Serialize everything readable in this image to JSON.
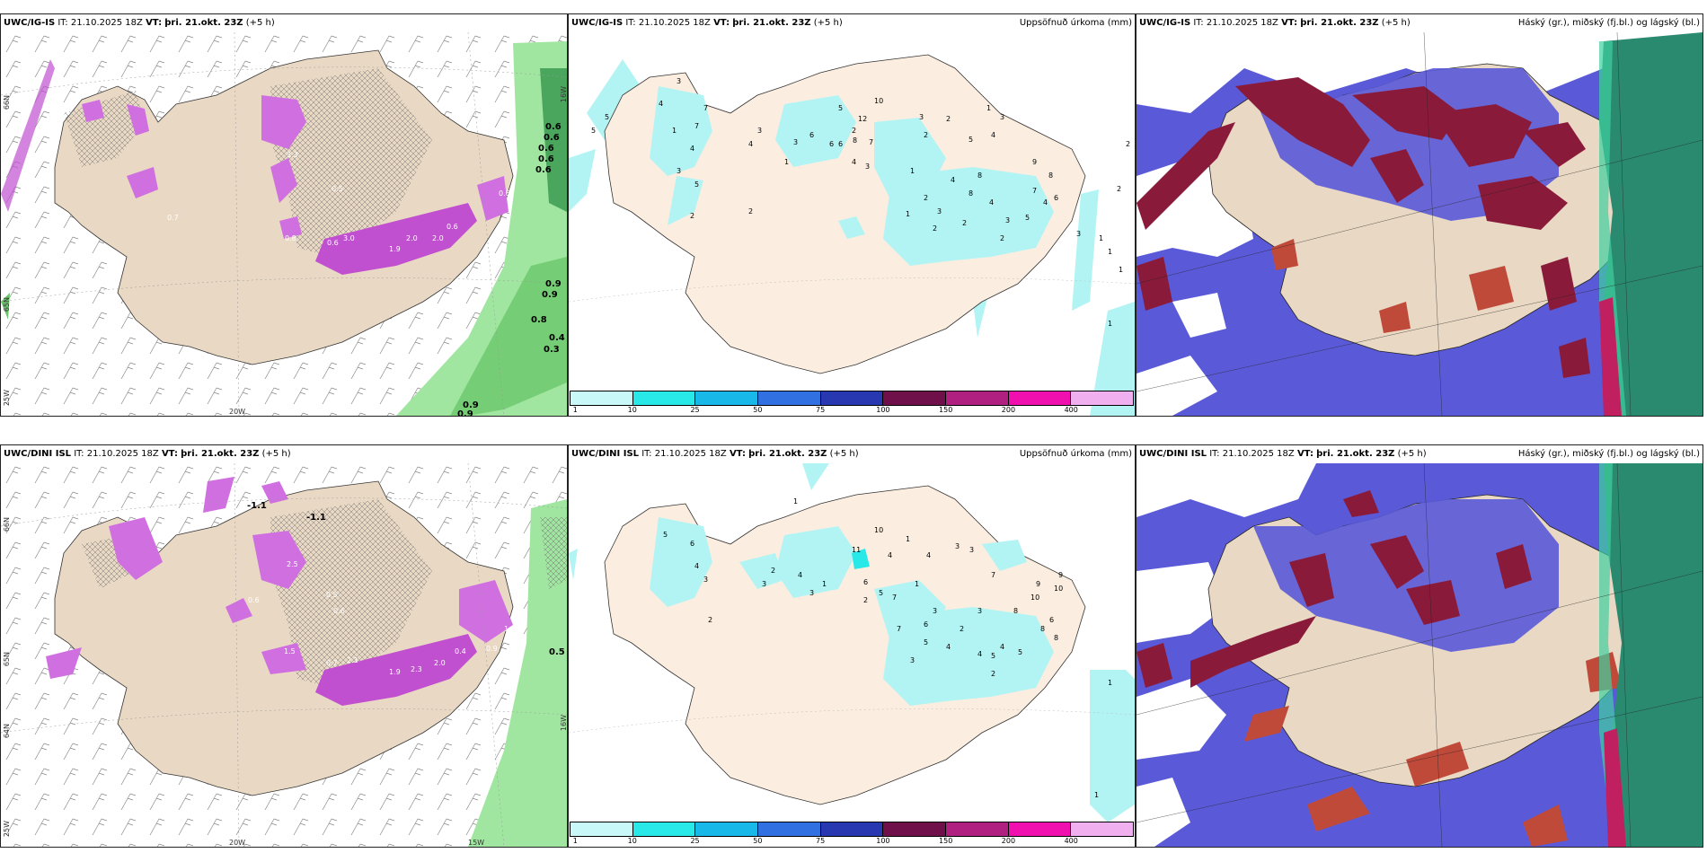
{
  "panels": {
    "r1c1": {
      "model": "UWC/IG-IS",
      "it_label": "IT:",
      "it_value": "21.10.2025 18Z",
      "vt_label": "VT:",
      "vt_value": "þri. 21.okt. 23Z",
      "lead": "(+5 h)",
      "right_title": "",
      "lon_labels": [
        "20W"
      ],
      "lat_labels": [
        "66N",
        "65N",
        "25W",
        "16W"
      ],
      "numbers": [
        "0.6",
        "0.6",
        "0.6",
        "0.6",
        "0.6",
        "0.9",
        "0.9",
        "0.8",
        "0.4",
        "0.3",
        "0.9",
        "0.9",
        "2.0",
        "2.0",
        "3.0",
        "0.6",
        "0.6",
        "0.5",
        "1.9",
        "3.3",
        "0.8",
        "0.7",
        "0.6"
      ]
    },
    "r1c2": {
      "model": "UWC/IG-IS",
      "it_label": "IT:",
      "it_value": "21.10.2025 18Z",
      "vt_label": "VT:",
      "vt_value": "þri. 21.okt. 23Z",
      "lead": "(+5 h)",
      "right_title": "Uppsöfnuð úrkoma (mm)",
      "numbers": [
        "5",
        "5",
        "4",
        "3",
        "7",
        "7",
        "1",
        "4",
        "3",
        "5",
        "2",
        "3",
        "4",
        "6",
        "2",
        "3",
        "1",
        "6",
        "10",
        "2",
        "4",
        "5",
        "6",
        "12",
        "8",
        "7",
        "3",
        "1",
        "2",
        "3",
        "2",
        "5",
        "1",
        "3",
        "4",
        "8",
        "3",
        "2",
        "4",
        "1",
        "2",
        "9",
        "8",
        "7",
        "6",
        "5",
        "4",
        "3",
        "2",
        "1",
        "1",
        "1",
        "1",
        "2",
        "2",
        "4",
        "8",
        "2",
        "3"
      ]
    },
    "r1c3": {
      "model": "UWC/IG-IS",
      "it_label": "IT:",
      "it_value": "21.10.2025 18Z",
      "vt_label": "VT:",
      "vt_value": "þri. 21.okt. 23Z",
      "lead": "(+5 h)",
      "right_title": "Háský (gr.), miðský (fj.bl.) og lágský (bl.)"
    },
    "r2c1": {
      "model": "UWC/DINI ISL",
      "it_label": "IT:",
      "it_value": "21.10.2025 18Z",
      "vt_label": "VT:",
      "vt_value": "þri. 21.okt. 23Z",
      "lead": "(+5 h)",
      "right_title": "",
      "lon_labels": [
        "20W",
        "15W"
      ],
      "lat_labels": [
        "66N",
        "65N",
        "64N",
        "25W",
        "16W"
      ],
      "numbers": [
        "-1.1",
        "-1.1",
        "0.5",
        "1.6",
        "2.1",
        "1.9",
        "2.3",
        "2.0",
        "0.7",
        "0.6",
        "0.5",
        "2.5",
        "1.5",
        "0.6",
        "0.4",
        "0.9"
      ]
    },
    "r2c2": {
      "model": "UWC/DINI ISL",
      "it_label": "IT:",
      "it_value": "21.10.2025 18Z",
      "vt_label": "VT:",
      "vt_value": "þri. 21.okt. 23Z",
      "lead": "(+5 h)",
      "right_title": "Uppsöfnuð úrkoma (mm)",
      "numbers": [
        "1",
        "5",
        "6",
        "4",
        "3",
        "3",
        "2",
        "4",
        "3",
        "1",
        "2",
        "10",
        "11",
        "4",
        "1",
        "4",
        "3",
        "3",
        "2",
        "6",
        "5",
        "7",
        "1",
        "3",
        "5",
        "4",
        "2",
        "3",
        "7",
        "8",
        "9",
        "10",
        "6",
        "4",
        "5",
        "4",
        "3",
        "2",
        "1",
        "1",
        "8",
        "7",
        "6",
        "5",
        "9",
        "10",
        "8"
      ]
    },
    "r2c3": {
      "model": "UWC/DINI ISL",
      "it_label": "IT:",
      "it_value": "21.10.2025 18Z",
      "vt_label": "VT:",
      "vt_value": "þri. 21.okt. 23Z",
      "lead": "(+5 h)",
      "right_title": "Háský (gr.), miðský (fj.bl.) og lágský (bl.)"
    }
  },
  "colorbar": {
    "ticks": [
      "1",
      "10",
      "25",
      "50",
      "75",
      "100",
      "150",
      "200",
      "400"
    ],
    "colors": [
      "#c8f8f8",
      "#28e8e8",
      "#18b8e8",
      "#3070e0",
      "#2838b0",
      "#70104a",
      "#b02080",
      "#f010b0",
      "#f0b0f0"
    ]
  },
  "colors": {
    "land": "#e9d8c3",
    "precip_land": "#fbeee0",
    "light_cyan": "#b2f4f4",
    "magenta": "#c050d0",
    "green": "#a0e6a0",
    "cloud_high": "#2a8a70",
    "cloud_mid": "#5a5ad8",
    "cloud_low": "#8a1a3a"
  }
}
